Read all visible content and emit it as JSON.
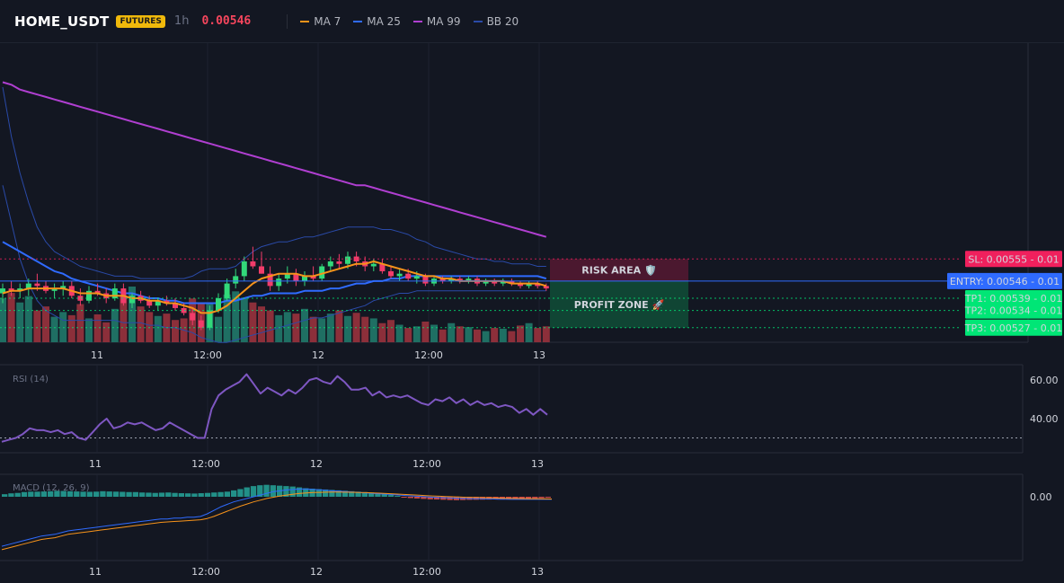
{
  "header": {
    "symbol": "HOME_USDT",
    "badge": "FUTURES",
    "timeframe": "1h",
    "price": "0.00546",
    "legend": [
      {
        "name": "MA 7",
        "color": "#f7931a"
      },
      {
        "name": "MA 25",
        "color": "#2f6bff"
      },
      {
        "name": "MA 99",
        "color": "#b03fd1"
      },
      {
        "name": "BB 20",
        "color": "#2a4aa8"
      }
    ]
  },
  "colors": {
    "up": "#26a69a",
    "down": "#ef5350",
    "candle_up": "#32d97a",
    "candle_down": "#f23c6a",
    "rsi": "#7e57c2",
    "macd": "#2f6bff",
    "signal": "#f7931a"
  },
  "chart_data": [
    {
      "type": "candlestick",
      "x_ticks": [
        "11",
        "12:00",
        "12",
        "12:00",
        "13"
      ],
      "ylim": [
        0.00525,
        0.0064
      ],
      "ohlc": [
        [
          0.00541,
          0.00545,
          0.00537,
          0.00543
        ],
        [
          0.00543,
          0.00546,
          0.0054,
          0.00542
        ],
        [
          0.00542,
          0.00545,
          0.00539,
          0.00543
        ],
        [
          0.00543,
          0.00547,
          0.0054,
          0.00545
        ],
        [
          0.00545,
          0.00549,
          0.00542,
          0.00544
        ],
        [
          0.00544,
          0.00546,
          0.00541,
          0.00542
        ],
        [
          0.00542,
          0.00545,
          0.00539,
          0.00543
        ],
        [
          0.00543,
          0.00546,
          0.0054,
          0.00544
        ],
        [
          0.00544,
          0.00546,
          0.00539,
          0.0054
        ],
        [
          0.0054,
          0.00543,
          0.00536,
          0.00538
        ],
        [
          0.00538,
          0.00544,
          0.00537,
          0.00542
        ],
        [
          0.00542,
          0.00545,
          0.0054,
          0.00541
        ],
        [
          0.00541,
          0.00543,
          0.00537,
          0.00539
        ],
        [
          0.00539,
          0.00545,
          0.00538,
          0.00543
        ],
        [
          0.00543,
          0.00545,
          0.00536,
          0.00537
        ],
        [
          0.00537,
          0.00541,
          0.00535,
          0.0054
        ],
        [
          0.0054,
          0.00542,
          0.00537,
          0.00538
        ],
        [
          0.00538,
          0.0054,
          0.00535,
          0.00536
        ],
        [
          0.00536,
          0.00539,
          0.00534,
          0.00538
        ],
        [
          0.00538,
          0.0054,
          0.00536,
          0.00537
        ],
        [
          0.00537,
          0.00539,
          0.00534,
          0.00535
        ],
        [
          0.00535,
          0.00537,
          0.00532,
          0.00533
        ],
        [
          0.00533,
          0.00535,
          0.00528,
          0.0053
        ],
        [
          0.0053,
          0.00532,
          0.00526,
          0.00527
        ],
        [
          0.00527,
          0.00536,
          0.00526,
          0.00534
        ],
        [
          0.00534,
          0.00541,
          0.00533,
          0.00539
        ],
        [
          0.00539,
          0.00547,
          0.00538,
          0.00545
        ],
        [
          0.00545,
          0.00551,
          0.00543,
          0.00548
        ],
        [
          0.00548,
          0.00556,
          0.00546,
          0.00554
        ],
        [
          0.00554,
          0.0056,
          0.00551,
          0.00552
        ],
        [
          0.00552,
          0.00558,
          0.00549,
          0.00549
        ],
        [
          0.00549,
          0.00552,
          0.00542,
          0.00544
        ],
        [
          0.00544,
          0.00549,
          0.00542,
          0.00547
        ],
        [
          0.00547,
          0.00552,
          0.00545,
          0.00549
        ],
        [
          0.00549,
          0.00551,
          0.00544,
          0.00546
        ],
        [
          0.00546,
          0.0055,
          0.00544,
          0.00548
        ],
        [
          0.00548,
          0.00552,
          0.00546,
          0.00547
        ],
        [
          0.00547,
          0.00553,
          0.00546,
          0.00552
        ],
        [
          0.00552,
          0.00556,
          0.0055,
          0.00554
        ],
        [
          0.00554,
          0.00557,
          0.00551,
          0.00553
        ],
        [
          0.00553,
          0.00558,
          0.00551,
          0.00556
        ],
        [
          0.00556,
          0.00558,
          0.00552,
          0.00554
        ],
        [
          0.00554,
          0.00556,
          0.0055,
          0.00552
        ],
        [
          0.00552,
          0.00555,
          0.0055,
          0.00553
        ],
        [
          0.00553,
          0.00555,
          0.00549,
          0.0055
        ],
        [
          0.0055,
          0.00552,
          0.00547,
          0.00548
        ],
        [
          0.00548,
          0.00551,
          0.00546,
          0.00549
        ],
        [
          0.00549,
          0.00551,
          0.00546,
          0.00547
        ],
        [
          0.00547,
          0.0055,
          0.00545,
          0.00548
        ],
        [
          0.00548,
          0.00549,
          0.00544,
          0.00545
        ],
        [
          0.00545,
          0.00548,
          0.00544,
          0.00547
        ],
        [
          0.00547,
          0.00548,
          0.00545,
          0.00546
        ],
        [
          0.00546,
          0.00548,
          0.00545,
          0.00547
        ],
        [
          0.00547,
          0.00548,
          0.00545,
          0.00546
        ],
        [
          0.00546,
          0.00548,
          0.00545,
          0.00547
        ],
        [
          0.00547,
          0.00548,
          0.00544,
          0.00545
        ],
        [
          0.00545,
          0.00547,
          0.00544,
          0.00546
        ],
        [
          0.00546,
          0.00547,
          0.00544,
          0.00545
        ],
        [
          0.00545,
          0.00547,
          0.00544,
          0.00546
        ],
        [
          0.00546,
          0.00547,
          0.00544,
          0.00545
        ],
        [
          0.00545,
          0.00546,
          0.00543,
          0.00544
        ],
        [
          0.00544,
          0.00546,
          0.00543,
          0.00545
        ],
        [
          0.00545,
          0.00546,
          0.00543,
          0.00544
        ],
        [
          0.00544,
          0.00545,
          0.00542,
          0.00543
        ]
      ],
      "volume": [
        55,
        62,
        50,
        58,
        40,
        45,
        32,
        38,
        34,
        48,
        30,
        35,
        25,
        42,
        58,
        70,
        45,
        38,
        33,
        36,
        28,
        30,
        55,
        50,
        48,
        32,
        60,
        64,
        56,
        50,
        45,
        40,
        34,
        38,
        36,
        42,
        32,
        30,
        36,
        40,
        33,
        37,
        32,
        30,
        24,
        28,
        22,
        18,
        20,
        26,
        22,
        16,
        24,
        20,
        19,
        16,
        14,
        18,
        17,
        14,
        21,
        24,
        18,
        20
      ],
      "ma7": [
        0.00541,
        0.00542,
        0.00542,
        0.00543,
        0.00543,
        0.00543,
        0.00543,
        0.00543,
        0.00542,
        0.00541,
        0.00541,
        0.00541,
        0.0054,
        0.0054,
        0.0054,
        0.00539,
        0.00539,
        0.00538,
        0.00538,
        0.00537,
        0.00537,
        0.00536,
        0.00535,
        0.00533,
        0.00533,
        0.00534,
        0.00536,
        0.00539,
        0.00542,
        0.00545,
        0.00547,
        0.00548,
        0.00549,
        0.00549,
        0.00549,
        0.00548,
        0.00548,
        0.00549,
        0.0055,
        0.00551,
        0.00552,
        0.00553,
        0.00553,
        0.00554,
        0.00553,
        0.00552,
        0.00551,
        0.0055,
        0.00549,
        0.00548,
        0.00548,
        0.00547,
        0.00547,
        0.00546,
        0.00546,
        0.00546,
        0.00546,
        0.00546,
        0.00546,
        0.00545,
        0.00545,
        0.00545,
        0.00545,
        0.00544
      ],
      "ma25": [
        0.00562,
        0.0056,
        0.00558,
        0.00556,
        0.00554,
        0.00552,
        0.0055,
        0.00549,
        0.00547,
        0.00546,
        0.00545,
        0.00544,
        0.00543,
        0.00542,
        0.00541,
        0.00541,
        0.0054,
        0.00539,
        0.00539,
        0.00538,
        0.00538,
        0.00537,
        0.00537,
        0.00537,
        0.00537,
        0.00537,
        0.00538,
        0.00538,
        0.00539,
        0.0054,
        0.0054,
        0.00541,
        0.00541,
        0.00541,
        0.00541,
        0.00542,
        0.00542,
        0.00542,
        0.00543,
        0.00543,
        0.00544,
        0.00545,
        0.00545,
        0.00546,
        0.00546,
        0.00547,
        0.00547,
        0.00548,
        0.00548,
        0.00548,
        0.00548,
        0.00548,
        0.00548,
        0.00548,
        0.00548,
        0.00548,
        0.00548,
        0.00548,
        0.00548,
        0.00548,
        0.00548,
        0.00548,
        0.00548,
        0.00547
      ],
      "ma99": [
        0.00627,
        0.00626,
        0.00624,
        0.00623,
        0.00622,
        0.00621,
        0.0062,
        0.00619,
        0.00618,
        0.00617,
        0.00616,
        0.00615,
        0.00614,
        0.00613,
        0.00612,
        0.00611,
        0.0061,
        0.00609,
        0.00608,
        0.00607,
        0.00606,
        0.00605,
        0.00604,
        0.00603,
        0.00602,
        0.00601,
        0.006,
        0.00599,
        0.00598,
        0.00597,
        0.00596,
        0.00595,
        0.00594,
        0.00593,
        0.00592,
        0.00591,
        0.0059,
        0.00589,
        0.00588,
        0.00587,
        0.00586,
        0.00585,
        0.00585,
        0.00584,
        0.00583,
        0.00582,
        0.00581,
        0.0058,
        0.00579,
        0.00578,
        0.00577,
        0.00576,
        0.00575,
        0.00574,
        0.00573,
        0.00572,
        0.00571,
        0.0057,
        0.00569,
        0.00568,
        0.00567,
        0.00566,
        0.00565,
        0.00564
      ],
      "bb_upper": [
        0.00625,
        0.00605,
        0.0059,
        0.00578,
        0.00568,
        0.00562,
        0.00558,
        0.00556,
        0.00554,
        0.00552,
        0.00551,
        0.0055,
        0.00549,
        0.00548,
        0.00548,
        0.00548,
        0.00547,
        0.00547,
        0.00547,
        0.00547,
        0.00547,
        0.00547,
        0.00548,
        0.0055,
        0.00551,
        0.00551,
        0.00551,
        0.00552,
        0.00555,
        0.00558,
        0.0056,
        0.00561,
        0.00562,
        0.00562,
        0.00563,
        0.00564,
        0.00564,
        0.00565,
        0.00566,
        0.00567,
        0.00568,
        0.00568,
        0.00568,
        0.00568,
        0.00567,
        0.00567,
        0.00566,
        0.00565,
        0.00563,
        0.00562,
        0.0056,
        0.00559,
        0.00558,
        0.00557,
        0.00556,
        0.00555,
        0.00555,
        0.00554,
        0.00554,
        0.00553,
        0.00553,
        0.00553,
        0.00552,
        0.00552
      ],
      "bb_lower": [
        0.00585,
        0.0057,
        0.00555,
        0.00545,
        0.00538,
        0.00534,
        0.00532,
        0.0053,
        0.0053,
        0.0053,
        0.0053,
        0.0053,
        0.0053,
        0.0053,
        0.00529,
        0.00529,
        0.00529,
        0.00528,
        0.00528,
        0.00527,
        0.00527,
        0.00526,
        0.00525,
        0.00523,
        0.00522,
        0.00521,
        0.00521,
        0.00522,
        0.00523,
        0.00524,
        0.00525,
        0.00526,
        0.00527,
        0.00528,
        0.00529,
        0.0053,
        0.00531,
        0.00531,
        0.00532,
        0.00533,
        0.00534,
        0.00535,
        0.00536,
        0.00538,
        0.00539,
        0.0054,
        0.00541,
        0.00541,
        0.00542,
        0.00542,
        0.00542,
        0.00542,
        0.00542,
        0.00542,
        0.00542,
        0.00542,
        0.00542,
        0.00542,
        0.00542,
        0.00542,
        0.00542,
        0.00542,
        0.00542,
        0.00542
      ],
      "levels": {
        "sl": {
          "label": "SL: 0.00555 - 0.01",
          "value": 0.00555,
          "color": "#f0205d"
        },
        "entry": {
          "label": "ENTRY: 0.00546 - 0.01",
          "value": 0.00546,
          "color": "#2f6bff"
        },
        "tp": [
          {
            "label": "TP1: 0.00539 - 0.01",
            "value": 0.00539,
            "color": "#00e676"
          },
          {
            "label": "TP2: 0.00534 - 0.01",
            "value": 0.00534,
            "color": "#00e676"
          },
          {
            "label": "TP3: 0.00527 - 0.01",
            "value": 0.00527,
            "color": "#00e676"
          }
        ]
      },
      "zones": {
        "risk": {
          "label": "RISK AREA 🛡️",
          "from": 0.00546,
          "to": 0.00555
        },
        "profit": {
          "label": "PROFIT ZONE 🚀",
          "from": 0.00527,
          "to": 0.00546
        }
      }
    },
    {
      "type": "line",
      "title": "RSI (14)",
      "x_ticks": [
        "11",
        "12:00",
        "12",
        "12:00",
        "13"
      ],
      "y_ticks": [
        "60.00",
        "40.00"
      ],
      "ylim": [
        25,
        70
      ],
      "reference": 30,
      "values": [
        28,
        29,
        30,
        32,
        35,
        34,
        34,
        33,
        34,
        32,
        33,
        30,
        29,
        33,
        37,
        40,
        35,
        36,
        38,
        37,
        38,
        36,
        34,
        35,
        38,
        36,
        34,
        32,
        30,
        30,
        45,
        52,
        55,
        57,
        59,
        63,
        58,
        53,
        56,
        54,
        52,
        55,
        53,
        56,
        60,
        61,
        59,
        58,
        62,
        59,
        55,
        55,
        56,
        52,
        54,
        51,
        52,
        51,
        52,
        50,
        48,
        47,
        50,
        49,
        51,
        48,
        50,
        47,
        49,
        47,
        48,
        46,
        47,
        46,
        43,
        45,
        42,
        45,
        42
      ]
    },
    {
      "type": "bar",
      "title": "MACD (12, 26, 9)",
      "x_ticks": [
        "11",
        "12:00",
        "12",
        "12:00",
        "13"
      ],
      "y_ticks": [
        "0.00"
      ],
      "histogram": [
        0.3,
        0.4,
        0.45,
        0.55,
        0.6,
        0.6,
        0.62,
        0.65,
        0.7,
        0.68,
        0.65,
        0.62,
        0.6,
        0.58,
        0.6,
        0.65,
        0.62,
        0.6,
        0.58,
        0.55,
        0.55,
        0.5,
        0.48,
        0.45,
        0.48,
        0.5,
        0.45,
        0.42,
        0.4,
        0.38,
        0.42,
        0.45,
        0.5,
        0.55,
        0.6,
        0.75,
        0.9,
        1.1,
        1.25,
        1.35,
        1.4,
        1.35,
        1.3,
        1.25,
        1.2,
        1.1,
        1.0,
        0.95,
        0.9,
        0.85,
        0.8,
        0.75,
        0.7,
        0.65,
        0.6,
        0.55,
        0.5,
        0.4,
        0.3,
        0.2,
        0.1,
        -0.05,
        -0.15,
        -0.2,
        -0.25,
        -0.3,
        -0.32,
        -0.35,
        -0.38,
        -0.4,
        -0.38,
        -0.36,
        -0.35,
        -0.34,
        -0.33,
        -0.32,
        -0.3,
        -0.28,
        -0.25,
        -0.22,
        -0.2,
        -0.18,
        -0.15,
        -0.12
      ],
      "macd": [
        -5.8,
        -5.6,
        -5.4,
        -5.2,
        -5.0,
        -4.8,
        -4.6,
        -4.5,
        -4.4,
        -4.2,
        -4.0,
        -3.9,
        -3.8,
        -3.7,
        -3.6,
        -3.5,
        -3.4,
        -3.3,
        -3.2,
        -3.1,
        -3.0,
        -2.9,
        -2.8,
        -2.7,
        -2.6,
        -2.6,
        -2.5,
        -2.5,
        -2.4,
        -2.4,
        -2.3,
        -2.0,
        -1.6,
        -1.2,
        -0.9,
        -0.6,
        -0.4,
        -0.2,
        0,
        0.2,
        0.4,
        0.6,
        0.7,
        0.8,
        0.85,
        0.9,
        0.9,
        0.85,
        0.8,
        0.75,
        0.7,
        0.65,
        0.6,
        0.55,
        0.5,
        0.45,
        0.4,
        0.35,
        0.3,
        0.25,
        0.2,
        0.15,
        0.1,
        0.05,
        0,
        -0.05,
        -0.1,
        -0.12,
        -0.15,
        -0.18,
        -0.2,
        -0.22,
        -0.22,
        -0.25,
        -0.25,
        -0.28,
        -0.28,
        -0.3,
        -0.3,
        -0.3,
        -0.3,
        -0.3,
        -0.3,
        -0.3
      ],
      "signal": [
        -6.2,
        -6.0,
        -5.8,
        -5.6,
        -5.4,
        -5.2,
        -5.0,
        -4.9,
        -4.8,
        -4.6,
        -4.4,
        -4.3,
        -4.2,
        -4.1,
        -4.0,
        -3.9,
        -3.8,
        -3.7,
        -3.6,
        -3.5,
        -3.4,
        -3.3,
        -3.2,
        -3.1,
        -3.0,
        -2.95,
        -2.9,
        -2.85,
        -2.8,
        -2.75,
        -2.7,
        -2.55,
        -2.3,
        -2.0,
        -1.7,
        -1.4,
        -1.1,
        -0.85,
        -0.6,
        -0.4,
        -0.2,
        -0.05,
        0.1,
        0.2,
        0.3,
        0.4,
        0.45,
        0.5,
        0.52,
        0.54,
        0.55,
        0.55,
        0.54,
        0.53,
        0.5,
        0.48,
        0.45,
        0.42,
        0.38,
        0.35,
        0.3,
        0.26,
        0.22,
        0.18,
        0.14,
        0.1,
        0.06,
        0.03,
        0,
        -0.03,
        -0.06,
        -0.08,
        -0.1,
        -0.12,
        -0.14,
        -0.16,
        -0.18,
        -0.2,
        -0.21,
        -0.22,
        -0.23,
        -0.24,
        -0.25,
        -0.26
      ]
    }
  ]
}
